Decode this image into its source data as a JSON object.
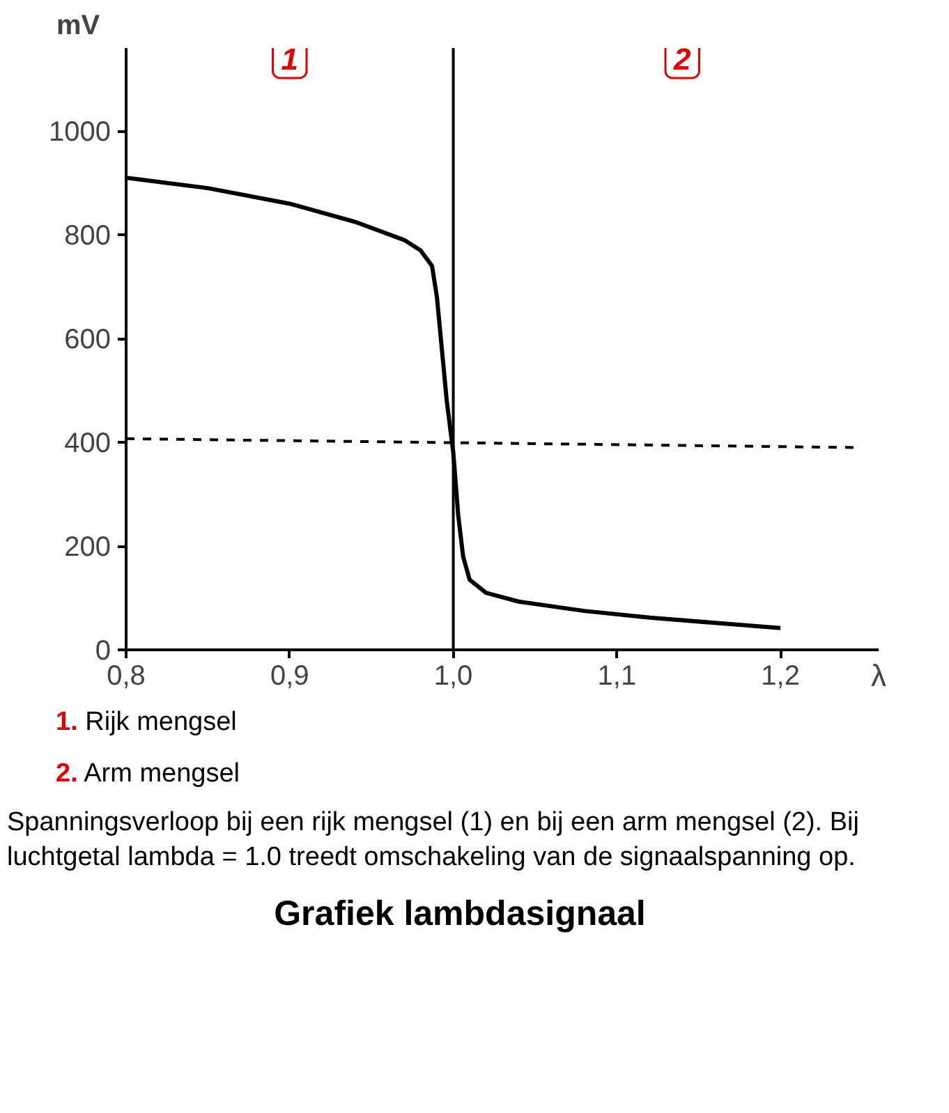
{
  "chart_data": {
    "type": "line",
    "title": "Grafiek lambdasignaal",
    "xlabel": "λ",
    "ylabel": "mV",
    "xlim": [
      0.8,
      1.26
    ],
    "ylim": [
      0,
      1160
    ],
    "xticks": [
      {
        "value": 0.8,
        "label": "0,8"
      },
      {
        "value": 0.9,
        "label": "0,9"
      },
      {
        "value": 1.0,
        "label": "1,0"
      },
      {
        "value": 1.1,
        "label": "1,1"
      },
      {
        "value": 1.2,
        "label": "1,2"
      }
    ],
    "yticks": [
      0,
      200,
      400,
      600,
      800,
      1000
    ],
    "grid": false,
    "marker": "none",
    "series": [
      {
        "color": "#000000",
        "line_style": "solid",
        "x": [
          0.8,
          0.85,
          0.9,
          0.94,
          0.97,
          0.98,
          0.987,
          0.99,
          0.993,
          0.996,
          1.0,
          1.003,
          1.006,
          1.01,
          1.02,
          1.04,
          1.08,
          1.12,
          1.16,
          1.2
        ],
        "values": [
          910,
          890,
          860,
          825,
          790,
          770,
          740,
          680,
          580,
          480,
          380,
          260,
          180,
          135,
          110,
          93,
          75,
          62,
          52,
          42
        ]
      },
      {
        "color": "#000000",
        "line_style": "dashed",
        "x": [
          0.8,
          1.245
        ],
        "values": [
          407,
          390
        ]
      }
    ],
    "ref_lines": [
      {
        "axis": "x",
        "value": 1.0,
        "color": "#000000",
        "line_style": "solid"
      }
    ],
    "annotations": [
      {
        "text": "1",
        "x": 0.9,
        "y": 1140
      },
      {
        "text": "2",
        "x": 1.14,
        "y": 1140
      },
      "1. Rijk mengsel",
      "2. Arm mengsel",
      "Spanningsverloop bij een rijk mengsel (1) en bij een arm mengsel (2). Bij luchtgetal lambda = 1.0 treedt omschakeling van de signaalspanning op."
    ]
  }
}
